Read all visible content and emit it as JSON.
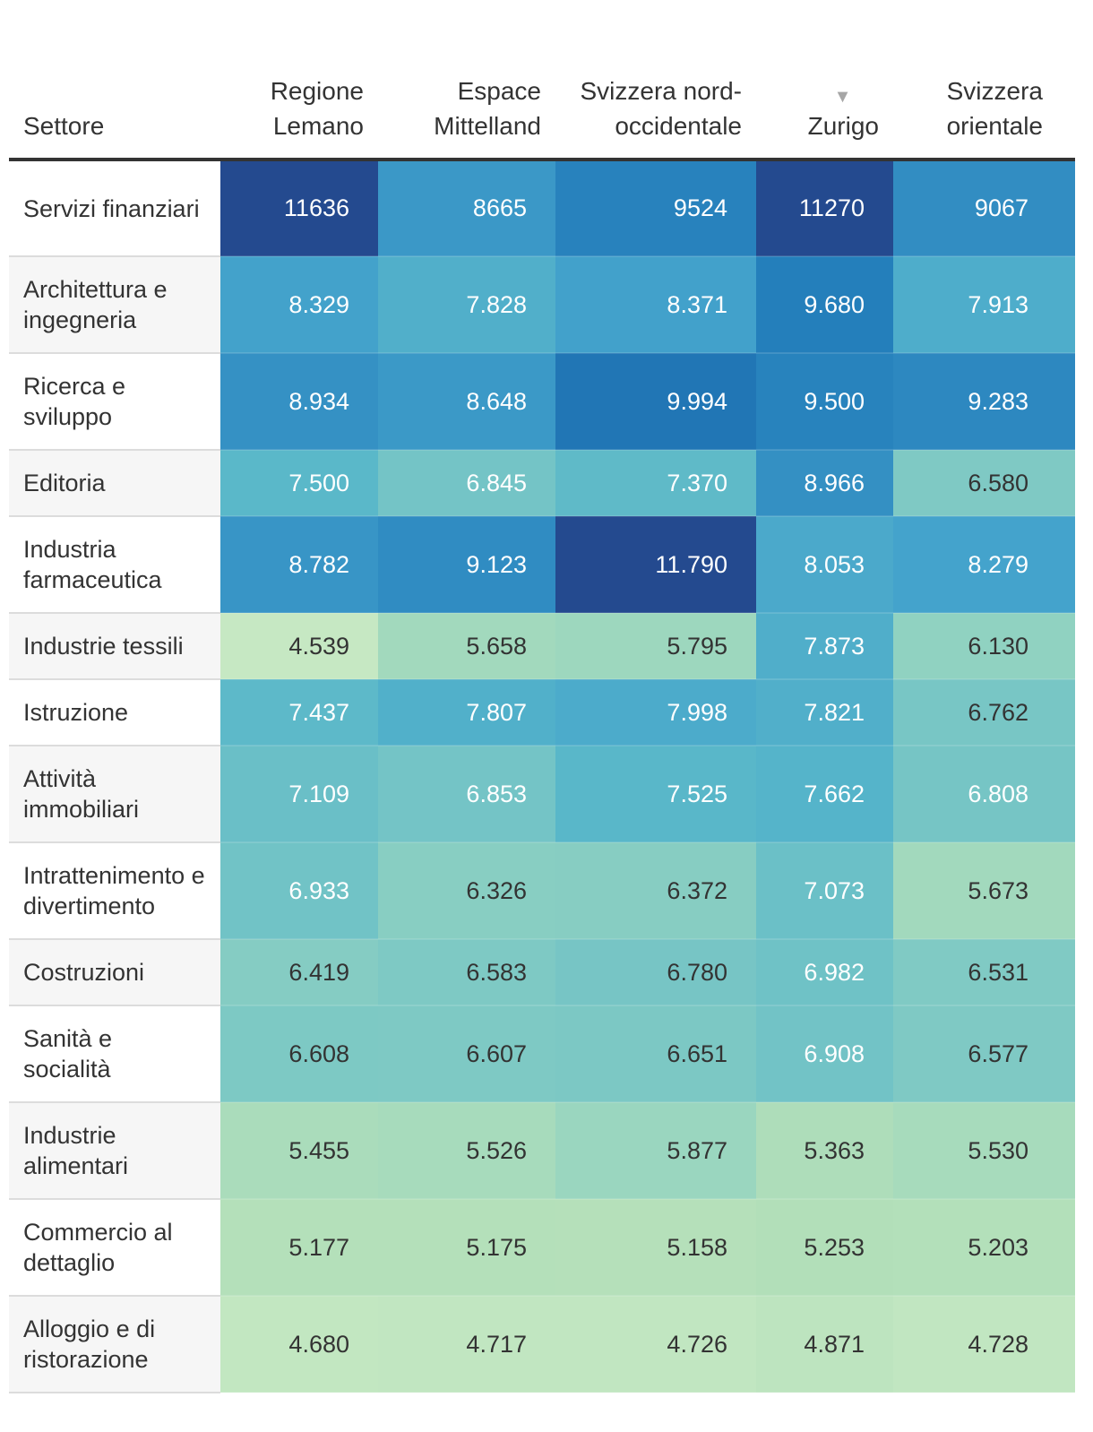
{
  "chart_data": {
    "type": "heatmap",
    "columns": [
      "Settore",
      "Regione Lemano",
      "Espace Mittelland",
      "Svizzera nord-occidentale",
      "Zurigo",
      "Svizzera orientale"
    ],
    "sorted_column": "Zurigo",
    "rows": [
      {
        "label": "Servizi finanziari",
        "tall": true,
        "values": [
          "11636",
          "8665",
          "9524",
          "11270",
          "9067"
        ],
        "numbers": [
          11636,
          8665,
          9524,
          11270,
          9067
        ]
      },
      {
        "label": "Architettura e ingegneria",
        "tall": true,
        "values": [
          "8.329",
          "7.828",
          "8.371",
          "9.680",
          "7.913"
        ],
        "numbers": [
          8329,
          7828,
          8371,
          9680,
          7913
        ]
      },
      {
        "label": "Ricerca e sviluppo",
        "tall": true,
        "values": [
          "8.934",
          "8.648",
          "9.994",
          "9.500",
          "9.283"
        ],
        "numbers": [
          8934,
          8648,
          9994,
          9500,
          9283
        ]
      },
      {
        "label": "Editoria",
        "tall": false,
        "values": [
          "7.500",
          "6.845",
          "7.370",
          "8.966",
          "6.580"
        ],
        "numbers": [
          7500,
          6845,
          7370,
          8966,
          6580
        ]
      },
      {
        "label": "Industria farmaceutica",
        "tall": true,
        "values": [
          "8.782",
          "9.123",
          "11.790",
          "8.053",
          "8.279"
        ],
        "numbers": [
          8782,
          9123,
          11790,
          8053,
          8279
        ]
      },
      {
        "label": "Industrie tessili",
        "tall": false,
        "values": [
          "4.539",
          "5.658",
          "5.795",
          "7.873",
          "6.130"
        ],
        "numbers": [
          4539,
          5658,
          5795,
          7873,
          6130
        ]
      },
      {
        "label": "Istruzione",
        "tall": false,
        "values": [
          "7.437",
          "7.807",
          "7.998",
          "7.821",
          "6.762"
        ],
        "numbers": [
          7437,
          7807,
          7998,
          7821,
          6762
        ]
      },
      {
        "label": "Attività immobiliari",
        "tall": true,
        "values": [
          "7.109",
          "6.853",
          "7.525",
          "7.662",
          "6.808"
        ],
        "numbers": [
          7109,
          6853,
          7525,
          7662,
          6808
        ]
      },
      {
        "label": "Intrattenimento e divertimento",
        "tall": true,
        "values": [
          "6.933",
          "6.326",
          "6.372",
          "7.073",
          "5.673"
        ],
        "numbers": [
          6933,
          6326,
          6372,
          7073,
          5673
        ]
      },
      {
        "label": "Costruzioni",
        "tall": false,
        "values": [
          "6.419",
          "6.583",
          "6.780",
          "6.982",
          "6.531"
        ],
        "numbers": [
          6419,
          6583,
          6780,
          6982,
          6531
        ]
      },
      {
        "label": "Sanità e socialità",
        "tall": true,
        "values": [
          "6.608",
          "6.607",
          "6.651",
          "6.908",
          "6.577"
        ],
        "numbers": [
          6608,
          6607,
          6651,
          6908,
          6577
        ]
      },
      {
        "label": "Industrie alimentari",
        "tall": true,
        "values": [
          "5.455",
          "5.526",
          "5.877",
          "5.363",
          "5.530"
        ],
        "numbers": [
          5455,
          5526,
          5877,
          5363,
          5530
        ]
      },
      {
        "label": "Commercio al dettaglio",
        "tall": true,
        "values": [
          "5.177",
          "5.175",
          "5.158",
          "5.253",
          "5.203"
        ],
        "numbers": [
          5177,
          5175,
          5158,
          5253,
          5203
        ]
      },
      {
        "label": "Alloggio e di ristorazione",
        "tall": true,
        "values": [
          "4.680",
          "4.717",
          "4.726",
          "4.871",
          "4.728"
        ],
        "numbers": [
          4680,
          4717,
          4726,
          4871,
          4728
        ]
      }
    ],
    "color_scale": {
      "domain": [
        4500,
        5250,
        6000,
        6750,
        7500,
        8250,
        9000,
        9750,
        10500,
        11250
      ],
      "colors": [
        "#c7e9c4",
        "#b2dfb9",
        "#95d4c0",
        "#78c6c5",
        "#5ab8c9",
        "#45a4cc",
        "#338fc3",
        "#237dba",
        "#1e66ab",
        "#244a8f"
      ],
      "dark_text": "#333333",
      "light_text": "#ffffff"
    }
  }
}
